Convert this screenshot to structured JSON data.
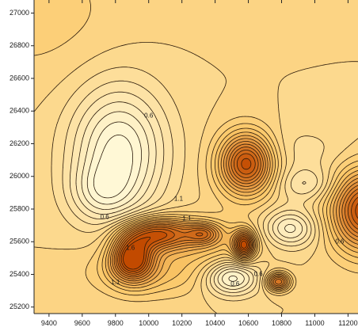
{
  "chart_data": {
    "type": "contour",
    "title": "",
    "xlabel": "",
    "ylabel": "",
    "xlim": [
      9310,
      11260
    ],
    "ylim": [
      25160,
      27080
    ],
    "grid": false,
    "legend": "none",
    "x_ticks": [
      9400,
      9600,
      9800,
      10000,
      10200,
      10400,
      10600,
      10800,
      11000,
      11200
    ],
    "y_ticks": [
      25200,
      25400,
      25600,
      25800,
      26000,
      26200,
      26400,
      26600,
      26800,
      27000
    ],
    "x_tick_labels": [
      "9400",
      "9600",
      "9800",
      "10000",
      "10200",
      "10400",
      "10600",
      "10800",
      "11000",
      "11200"
    ],
    "y_tick_labels": [
      "25200",
      "25400",
      "25600",
      "25800",
      "26000",
      "26200",
      "26400",
      "26600",
      "26800",
      "27000"
    ],
    "base_level": 1.0,
    "contour_levels": [
      0.3,
      0.4,
      0.5,
      0.6,
      0.7,
      0.8,
      0.9,
      1.0,
      1.1,
      1.2,
      1.3,
      1.4,
      1.5,
      1.6,
      1.7,
      1.8,
      1.9,
      2.0,
      2.1,
      2.2,
      2.3
    ],
    "colormap": {
      "low": "#fff8d6",
      "mid": "#fbc868",
      "high": "#c24a00",
      "range": [
        0.3,
        2.3
      ]
    },
    "features": [
      {
        "type": "low",
        "x": 9820,
        "y": 26150,
        "amp": -0.75,
        "sx": 200,
        "sy": 280
      },
      {
        "type": "low",
        "x": 9710,
        "y": 25900,
        "amp": -0.3,
        "sx": 130,
        "sy": 120
      },
      {
        "type": "high",
        "x": 10590,
        "y": 26080,
        "amp": 1.3,
        "sx": 115,
        "sy": 130
      },
      {
        "type": "high",
        "x": 10060,
        "y": 25650,
        "amp": 1.15,
        "sx": 150,
        "sy": 70
      },
      {
        "type": "high",
        "x": 9900,
        "y": 25500,
        "amp": 1.3,
        "sx": 90,
        "sy": 95
      },
      {
        "type": "high",
        "x": 10020,
        "y": 25420,
        "amp": 0.35,
        "sx": 260,
        "sy": 110
      },
      {
        "type": "high",
        "x": 10330,
        "y": 25650,
        "amp": 0.6,
        "sx": 70,
        "sy": 45
      },
      {
        "type": "high",
        "x": 10575,
        "y": 25580,
        "amp": 1.2,
        "sx": 45,
        "sy": 60
      },
      {
        "type": "high",
        "x": 10400,
        "y": 25600,
        "amp": 0.3,
        "sx": 200,
        "sy": 100
      },
      {
        "type": "high",
        "x": 10780,
        "y": 25355,
        "amp": 1.0,
        "sx": 50,
        "sy": 40
      },
      {
        "type": "high",
        "x": 11300,
        "y": 25790,
        "amp": 1.3,
        "sx": 140,
        "sy": 170
      },
      {
        "type": "low",
        "x": 10500,
        "y": 25380,
        "amp": -0.7,
        "sx": 110,
        "sy": 75
      },
      {
        "type": "low",
        "x": 10850,
        "y": 25680,
        "amp": -0.55,
        "sx": 110,
        "sy": 80
      },
      {
        "type": "low",
        "x": 10950,
        "y": 25950,
        "amp": -0.3,
        "sx": 120,
        "sy": 70
      },
      {
        "type": "low",
        "x": 10900,
        "y": 26150,
        "amp": -0.15,
        "sx": 250,
        "sy": 120
      },
      {
        "type": "high",
        "x": 9310,
        "y": 27000,
        "amp": 0.15,
        "sx": 400,
        "sy": 300
      }
    ],
    "contour_labels": [
      {
        "text": "0.6",
        "x": 10000,
        "y": 26370
      },
      {
        "text": "1.1",
        "x": 10180,
        "y": 25860
      },
      {
        "text": "1.1",
        "x": 10230,
        "y": 25740
      },
      {
        "text": "0.6",
        "x": 9735,
        "y": 25750
      },
      {
        "text": "1.6",
        "x": 9890,
        "y": 25560
      },
      {
        "text": "1.1",
        "x": 9800,
        "y": 25350
      },
      {
        "text": "0.6",
        "x": 11150,
        "y": 25600
      },
      {
        "text": "0.6",
        "x": 10660,
        "y": 25400
      },
      {
        "text": "0.6",
        "x": 10520,
        "y": 25340
      },
      {
        "text": "1.1",
        "x": 11300,
        "y": 25790
      }
    ]
  }
}
